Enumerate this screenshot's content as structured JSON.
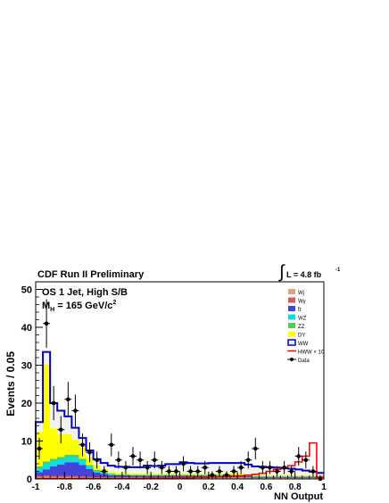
{
  "header": {
    "left": "CDF Run II Preliminary",
    "lumi_integral": "∫",
    "lumi_label": "L = 4.8 fb",
    "lumi_exp": "-1"
  },
  "chart_data": {
    "type": "bar",
    "stacked": true,
    "xlabel": "NN Output",
    "ylabel": "Events / 0.05",
    "xlim": [
      -1,
      1
    ],
    "ylim": [
      0,
      52
    ],
    "bin_width": 0.05,
    "x_ticks": [
      -1,
      -0.8,
      -0.6,
      -0.4,
      -0.2,
      0,
      0.2,
      0.4,
      0.6,
      0.8,
      1
    ],
    "x_tick_labels": [
      "-1",
      "-0.8",
      "-0.6",
      "-0.4",
      "-0.2",
      "0",
      "0.2",
      "0.4",
      "0.6",
      "0.8",
      "1"
    ],
    "y_ticks": [
      0,
      10,
      20,
      30,
      40,
      50
    ],
    "annotations": {
      "line1": "OS 1 Jet, High S/B",
      "line2_main": "M",
      "line2_sub": "H",
      "line2_rest": " = 165 GeV/c",
      "line2_sup": "2"
    },
    "legend": {
      "position": "top-right",
      "entries": [
        {
          "label": "Wj",
          "color": "#d9a77e",
          "style": "fill"
        },
        {
          "label": "Wγ",
          "color": "#d95a5a",
          "style": "fill"
        },
        {
          "label": "t̄t",
          "color": "#4444dd",
          "style": "fill"
        },
        {
          "label": "WZ",
          "color": "#11dddd",
          "style": "fill"
        },
        {
          "label": "ZZ",
          "color": "#55cc55",
          "style": "fill"
        },
        {
          "label": "DY",
          "color": "#ffff00",
          "style": "fill"
        },
        {
          "label": "WW",
          "color": "#f2f2f2",
          "stroke": "#0000cc",
          "style": "box"
        },
        {
          "label": "HWW × 10",
          "color": "#ff0000",
          "style": "line"
        },
        {
          "label": "Data",
          "color": "#000000",
          "style": "marker"
        }
      ]
    },
    "series": [
      {
        "name": "Wj",
        "color": "#d9a77e",
        "values": [
          0.5,
          0.6,
          0.5,
          0.5,
          0.5,
          0.5,
          0.4,
          0.4,
          0.3,
          0.3,
          0.3,
          0.3,
          0.3,
          0.3,
          0.3,
          0.3,
          0.3,
          0.3,
          0.3,
          0.3,
          0.3,
          0.3,
          0.3,
          0.3,
          0.3,
          0.3,
          0.3,
          0.3,
          0.3,
          0.3,
          0.2,
          0.2,
          0.2,
          0.2,
          0.2,
          0.2,
          0.2,
          0.2,
          0.2,
          0.2
        ]
      },
      {
        "name": "Wγ",
        "color": "#d95a5a",
        "values": [
          0.3,
          0.4,
          0.3,
          0.3,
          0.3,
          0.3,
          0.3,
          0.2,
          0.2,
          0.2,
          0.2,
          0.2,
          0.2,
          0.2,
          0.2,
          0.2,
          0.2,
          0.2,
          0.2,
          0.2,
          0.2,
          0.2,
          0.2,
          0.2,
          0.2,
          0.2,
          0.2,
          0.2,
          0.2,
          0.2,
          0.1,
          0.1,
          0.1,
          0.1,
          0.1,
          0.1,
          0.1,
          0.1,
          0.1,
          0.1
        ]
      },
      {
        "name": "t̄t",
        "color": "#4444dd",
        "values": [
          1.0,
          1.5,
          2.5,
          3.0,
          3.5,
          3.5,
          3.0,
          2.0,
          1.2,
          0.8,
          0.5,
          0.4,
          0.4,
          0.3,
          0.3,
          0.3,
          0.3,
          0.3,
          0.3,
          0.3,
          0.3,
          0.3,
          0.3,
          0.3,
          0.3,
          0.3,
          0.3,
          0.3,
          0.3,
          0.2,
          0.2,
          0.2,
          0.2,
          0.2,
          0.2,
          0.2,
          0.2,
          0.2,
          0.2,
          0.1
        ]
      },
      {
        "name": "WZ",
        "color": "#11dddd",
        "values": [
          1.0,
          1.5,
          1.5,
          1.5,
          1.5,
          1.5,
          1.2,
          0.8,
          0.5,
          0.3,
          0.3,
          0.2,
          0.2,
          0.2,
          0.2,
          0.2,
          0.2,
          0.2,
          0.2,
          0.2,
          0.2,
          0.2,
          0.2,
          0.2,
          0.2,
          0.2,
          0.2,
          0.2,
          0.2,
          0.2,
          0.1,
          0.1,
          0.1,
          0.1,
          0.1,
          0.1,
          0.1,
          0.1,
          0.1,
          0.1
        ]
      },
      {
        "name": "ZZ",
        "color": "#55cc55",
        "values": [
          0.5,
          0.6,
          0.5,
          0.5,
          0.5,
          0.5,
          0.4,
          0.3,
          0.2,
          0.2,
          0.1,
          0.1,
          0.1,
          0.1,
          0.1,
          0.1,
          0.1,
          0.1,
          0.1,
          0.1,
          0.1,
          0.1,
          0.1,
          0.1,
          0.1,
          0.1,
          0.1,
          0.1,
          0.1,
          0.1,
          0.1,
          0.1,
          0.1,
          0.1,
          0.1,
          0.1,
          0.1,
          0.1,
          0.1,
          0.1
        ]
      },
      {
        "name": "DY",
        "color": "#ffff00",
        "values": [
          9.0,
          25.5,
          8.0,
          6.0,
          5.5,
          4.0,
          3.0,
          2.0,
          1.2,
          0.8,
          0.5,
          0.4,
          0.4,
          0.3,
          0.3,
          0.3,
          0.3,
          0.3,
          0.3,
          0.3,
          0.3,
          0.3,
          0.3,
          0.3,
          0.3,
          0.3,
          0.3,
          0.3,
          0.3,
          0.2,
          0.2,
          0.2,
          0.2,
          0.2,
          0.2,
          0.2,
          0.2,
          0.2,
          0.2,
          0.2
        ]
      },
      {
        "name": "WW",
        "color": "#f2f2f2",
        "edge": "#0000cc",
        "values": [
          2.7,
          3.4,
          6.7,
          6.2,
          4.7,
          3.2,
          2.5,
          1.8,
          1.6,
          1.6,
          1.6,
          1.6,
          1.6,
          1.7,
          1.7,
          2.1,
          2.0,
          2.1,
          2.5,
          2.5,
          3.0,
          2.8,
          2.7,
          2.7,
          2.8,
          2.8,
          2.8,
          2.8,
          2.8,
          2.6,
          2.4,
          2.3,
          2.2,
          2.1,
          1.9,
          1.8,
          1.6,
          1.3,
          1.0,
          0.8
        ]
      }
    ],
    "hww_x10": {
      "name": "HWW × 10",
      "color": "#ff0000",
      "values": [
        0.1,
        0.1,
        0.1,
        0.1,
        0.1,
        0.1,
        0.1,
        0.1,
        0.1,
        0.1,
        0.1,
        0.1,
        0.1,
        0.1,
        0.1,
        0.2,
        0.2,
        0.2,
        0.2,
        0.3,
        0.3,
        0.3,
        0.4,
        0.4,
        0.5,
        0.5,
        0.6,
        0.7,
        0.8,
        1.0,
        1.2,
        1.5,
        2.0,
        2.5,
        3.0,
        3.5,
        4.5,
        6.0,
        9.5,
        0.5
      ]
    },
    "data": {
      "name": "Data",
      "x": [
        -0.975,
        -0.925,
        -0.875,
        -0.825,
        -0.775,
        -0.725,
        -0.675,
        -0.625,
        -0.575,
        -0.525,
        -0.475,
        -0.425,
        -0.375,
        -0.325,
        -0.275,
        -0.225,
        -0.175,
        -0.125,
        -0.075,
        -0.025,
        0.025,
        0.075,
        0.125,
        0.175,
        0.225,
        0.275,
        0.325,
        0.375,
        0.425,
        0.475,
        0.525,
        0.575,
        0.625,
        0.675,
        0.725,
        0.775,
        0.825,
        0.875,
        0.925,
        0.975
      ],
      "y": [
        8,
        41,
        20,
        13,
        21,
        18,
        9,
        7,
        5,
        2,
        9,
        5,
        3,
        6,
        5,
        3,
        5,
        3,
        2,
        2,
        4,
        2,
        2,
        3,
        1,
        2,
        1,
        2,
        3,
        5,
        8,
        3,
        3,
        2,
        3,
        2,
        6,
        5,
        2,
        0
      ]
    }
  }
}
